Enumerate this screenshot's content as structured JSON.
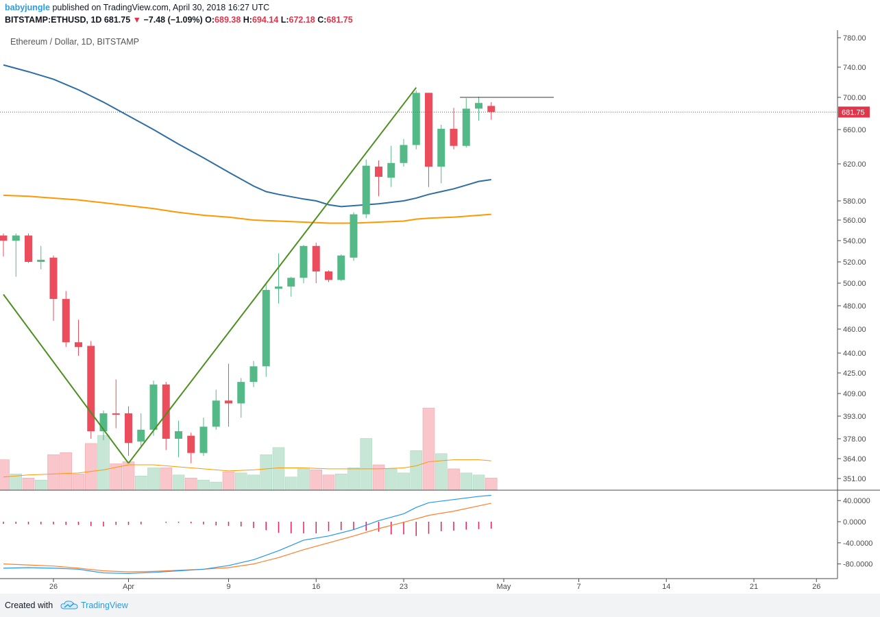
{
  "header": {
    "author": "babyjungle",
    "published_text": "published on TradingView.com, April 30, 2018 16:27 UTC",
    "symbol": "BITSTAMP:ETHUSD, 1D",
    "last": "681.75",
    "change": "−7.48 (−1.09%)",
    "o_label": "O:",
    "o_value": "689.38",
    "h_label": "H:",
    "h_value": "694.14",
    "l_label": "L:",
    "l_value": "672.18",
    "c_label": "C:",
    "c_value": "681.75"
  },
  "chart_legend": "Ethereum / Dollar, 1D, BITSTAMP",
  "footer": {
    "created_with": "Created with",
    "brand": "TradingView"
  },
  "colors": {
    "up": "#53b987",
    "down": "#eb4d5c",
    "up_volume": "#c8e6d6",
    "down_volume": "#f8c6cb",
    "ma_blue": "#2e6da4",
    "ma_orange": "#ff9800",
    "trend_line": "#4b8f1f",
    "macd": "#2196f3",
    "signal": "#ff7f2a",
    "histogram": "#e91e63",
    "price_line": "#e0364b"
  },
  "chart_data": {
    "type": "candlestick",
    "price_ticks": [
      351,
      364,
      378,
      393,
      409,
      425,
      440,
      460,
      480,
      500,
      520,
      540,
      560,
      580,
      620,
      660,
      700,
      740,
      780
    ],
    "price_tick_labels": [
      "351.00",
      "364.00",
      "378.00",
      "393.00",
      "409.00",
      "425.00",
      "440.00",
      "460.00",
      "480.00",
      "500.00",
      "520.00",
      "540.00",
      "560.00",
      "580.00",
      "620.00",
      "660.00",
      "700.00",
      "740.00",
      "780.00"
    ],
    "last_price_label": "681.75",
    "last_price": 681.75,
    "x_ticks": [
      {
        "label": "26",
        "day": 26
      },
      {
        "label": "Apr",
        "day": 32
      },
      {
        "label": "9",
        "day": 40
      },
      {
        "label": "16",
        "day": 47
      },
      {
        "label": "23",
        "day": 54
      },
      {
        "label": "May",
        "day": 62
      },
      {
        "label": "7",
        "day": 68
      },
      {
        "label": "14",
        "day": 75
      },
      {
        "label": "21",
        "day": 82
      },
      {
        "label": "26",
        "day": 87
      }
    ],
    "candles": [
      {
        "day": 22,
        "o": 545,
        "h": 547,
        "l": 525,
        "c": 540
      },
      {
        "day": 23,
        "o": 540,
        "h": 547,
        "l": 506,
        "c": 545
      },
      {
        "day": 24,
        "o": 545,
        "h": 547,
        "l": 519,
        "c": 520
      },
      {
        "day": 25,
        "o": 520,
        "h": 535,
        "l": 513,
        "c": 522
      },
      {
        "day": 26,
        "o": 524,
        "h": 526,
        "l": 467,
        "c": 486
      },
      {
        "day": 27,
        "o": 486,
        "h": 493,
        "l": 445,
        "c": 449
      },
      {
        "day": 28,
        "o": 449,
        "h": 468,
        "l": 438,
        "c": 445
      },
      {
        "day": 29,
        "o": 446,
        "h": 450,
        "l": 378,
        "c": 383
      },
      {
        "day": 30,
        "o": 383,
        "h": 397,
        "l": 377,
        "c": 395
      },
      {
        "day": 31,
        "o": 395,
        "h": 420,
        "l": 385,
        "c": 394
      },
      {
        "day": 32,
        "o": 395,
        "h": 400,
        "l": 366,
        "c": 375
      },
      {
        "day": 33,
        "o": 376,
        "h": 395,
        "l": 373,
        "c": 384
      },
      {
        "day": 34,
        "o": 384,
        "h": 419,
        "l": 380,
        "c": 416
      },
      {
        "day": 35,
        "o": 416,
        "h": 418,
        "l": 370,
        "c": 378
      },
      {
        "day": 36,
        "o": 378,
        "h": 390,
        "l": 365,
        "c": 383
      },
      {
        "day": 37,
        "o": 380,
        "h": 382,
        "l": 361,
        "c": 368
      },
      {
        "day": 38,
        "o": 368,
        "h": 392,
        "l": 366,
        "c": 386
      },
      {
        "day": 39,
        "o": 386,
        "h": 412,
        "l": 384,
        "c": 404
      },
      {
        "day": 40,
        "o": 404,
        "h": 432,
        "l": 386,
        "c": 402
      },
      {
        "day": 41,
        "o": 402,
        "h": 421,
        "l": 392,
        "c": 418
      },
      {
        "day": 42,
        "o": 418,
        "h": 434,
        "l": 414,
        "c": 430
      },
      {
        "day": 43,
        "o": 430,
        "h": 499,
        "l": 422,
        "c": 494
      },
      {
        "day": 44,
        "o": 495,
        "h": 528,
        "l": 482,
        "c": 497
      },
      {
        "day": 45,
        "o": 497,
        "h": 506,
        "l": 488,
        "c": 505
      },
      {
        "day": 46,
        "o": 505,
        "h": 536,
        "l": 500,
        "c": 535
      },
      {
        "day": 47,
        "o": 535,
        "h": 538,
        "l": 500,
        "c": 511
      },
      {
        "day": 48,
        "o": 511,
        "h": 512,
        "l": 501,
        "c": 503
      },
      {
        "day": 49,
        "o": 503,
        "h": 527,
        "l": 502,
        "c": 526
      },
      {
        "day": 50,
        "o": 524,
        "h": 568,
        "l": 521,
        "c": 566
      },
      {
        "day": 51,
        "o": 566,
        "h": 625,
        "l": 562,
        "c": 618
      },
      {
        "day": 52,
        "o": 617,
        "h": 624,
        "l": 585,
        "c": 606
      },
      {
        "day": 53,
        "o": 605,
        "h": 641,
        "l": 595,
        "c": 621
      },
      {
        "day": 54,
        "o": 621,
        "h": 649,
        "l": 617,
        "c": 642
      },
      {
        "day": 55,
        "o": 642,
        "h": 709,
        "l": 637,
        "c": 706
      },
      {
        "day": 56,
        "o": 706,
        "h": 706,
        "l": 595,
        "c": 617
      },
      {
        "day": 57,
        "o": 617,
        "h": 666,
        "l": 599,
        "c": 661
      },
      {
        "day": 58,
        "o": 661,
        "h": 687,
        "l": 637,
        "c": 641
      },
      {
        "day": 59,
        "o": 641,
        "h": 699,
        "l": 639,
        "c": 686
      },
      {
        "day": 60,
        "o": 686,
        "h": 701,
        "l": 671,
        "c": 693
      },
      {
        "day": 61,
        "o": 689.38,
        "h": 694.14,
        "l": 672.18,
        "c": 681.75
      }
    ],
    "volume": [
      3,
      1.6,
      1.2,
      1.0,
      3.5,
      3.7,
      1.6,
      4.6,
      5.4,
      2.6,
      2.8,
      1.4,
      2.2,
      2.2,
      1.5,
      1.2,
      1.0,
      0.8,
      1.8,
      1.7,
      1.5,
      3.5,
      4.2,
      1.3,
      2.1,
      2.0,
      1.5,
      1.6,
      2.2,
      5.1,
      2.5,
      2.1,
      1.7,
      3.9,
      8.1,
      3.6,
      2.1,
      1.7,
      1.5,
      1.2
    ],
    "ma_blue": [
      [
        22,
        743
      ],
      [
        24,
        734
      ],
      [
        26,
        724
      ],
      [
        28,
        710
      ],
      [
        30,
        694
      ],
      [
        32,
        677
      ],
      [
        34,
        660
      ],
      [
        36,
        643
      ],
      [
        38,
        627
      ],
      [
        40,
        611
      ],
      [
        42,
        596
      ],
      [
        43,
        590
      ],
      [
        44,
        587
      ],
      [
        46,
        582
      ],
      [
        47,
        580
      ],
      [
        48,
        576
      ],
      [
        49,
        574
      ],
      [
        50,
        575
      ],
      [
        51,
        576
      ],
      [
        52,
        577
      ],
      [
        54,
        580
      ],
      [
        55,
        583
      ],
      [
        56,
        587
      ],
      [
        57,
        590
      ],
      [
        58,
        593
      ],
      [
        59,
        597
      ],
      [
        60,
        601
      ],
      [
        61,
        603
      ]
    ],
    "ma_orange": [
      [
        22,
        586
      ],
      [
        24,
        585
      ],
      [
        26,
        583
      ],
      [
        28,
        581
      ],
      [
        30,
        578
      ],
      [
        32,
        575
      ],
      [
        34,
        572
      ],
      [
        36,
        568
      ],
      [
        38,
        565
      ],
      [
        40,
        563
      ],
      [
        42,
        560
      ],
      [
        44,
        559
      ],
      [
        46,
        558
      ],
      [
        48,
        557
      ],
      [
        50,
        557
      ],
      [
        52,
        558
      ],
      [
        54,
        559
      ],
      [
        55,
        561
      ],
      [
        56,
        562
      ],
      [
        58,
        563
      ],
      [
        60,
        565
      ],
      [
        61,
        566
      ]
    ],
    "volume_ma": [
      [
        22,
        1.3
      ],
      [
        24,
        1.5
      ],
      [
        26,
        1.6
      ],
      [
        28,
        1.7
      ],
      [
        30,
        2.0
      ],
      [
        32,
        2.5
      ],
      [
        34,
        2.5
      ],
      [
        36,
        2.3
      ],
      [
        38,
        2.1
      ],
      [
        40,
        1.9
      ],
      [
        42,
        2.0
      ],
      [
        44,
        2.2
      ],
      [
        46,
        2.2
      ],
      [
        48,
        2.1
      ],
      [
        50,
        2.1
      ],
      [
        52,
        2.1
      ],
      [
        54,
        2.2
      ],
      [
        55,
        2.4
      ],
      [
        56,
        2.8
      ],
      [
        58,
        3.0
      ],
      [
        60,
        3.0
      ],
      [
        61,
        2.9
      ]
    ],
    "trend_lines": [
      [
        [
          22,
          490
        ],
        [
          32,
          361
        ]
      ],
      [
        [
          32,
          361
        ],
        [
          55,
          713
        ]
      ]
    ],
    "resistance_line": [
      [
        58.5,
        700
      ],
      [
        66,
        700
      ]
    ],
    "macd": {
      "ticks": [
        40,
        0,
        -40,
        -80
      ],
      "tick_labels": [
        "40.0000",
        "0.0000",
        "-40.0000",
        "-80.0000"
      ],
      "macd_line": [
        [
          22,
          -88
        ],
        [
          24,
          -87
        ],
        [
          26,
          -88
        ],
        [
          28,
          -90
        ],
        [
          30,
          -97
        ],
        [
          32,
          -98
        ],
        [
          34,
          -96
        ],
        [
          36,
          -93
        ],
        [
          38,
          -90
        ],
        [
          40,
          -83
        ],
        [
          42,
          -72
        ],
        [
          44,
          -55
        ],
        [
          46,
          -35
        ],
        [
          48,
          -27
        ],
        [
          50,
          -15
        ],
        [
          52,
          2
        ],
        [
          54,
          15
        ],
        [
          55,
          27
        ],
        [
          56,
          36
        ],
        [
          58,
          42
        ],
        [
          60,
          48
        ],
        [
          61,
          50
        ]
      ],
      "signal_line": [
        [
          22,
          -80
        ],
        [
          24,
          -82
        ],
        [
          26,
          -84
        ],
        [
          28,
          -88
        ],
        [
          30,
          -93
        ],
        [
          32,
          -95
        ],
        [
          34,
          -94
        ],
        [
          36,
          -92
        ],
        [
          38,
          -90
        ],
        [
          40,
          -87
        ],
        [
          42,
          -80
        ],
        [
          44,
          -68
        ],
        [
          46,
          -53
        ],
        [
          48,
          -40
        ],
        [
          50,
          -27
        ],
        [
          52,
          -13
        ],
        [
          54,
          -1
        ],
        [
          56,
          12
        ],
        [
          58,
          20
        ],
        [
          60,
          30
        ],
        [
          61,
          35
        ]
      ],
      "histogram": [
        [
          22,
          -4
        ],
        [
          23,
          -4
        ],
        [
          24,
          -5
        ],
        [
          25,
          -5
        ],
        [
          26,
          -5
        ],
        [
          27,
          -6
        ],
        [
          28,
          -6
        ],
        [
          29,
          -8
        ],
        [
          30,
          -9
        ],
        [
          31,
          -6
        ],
        [
          32,
          -6
        ],
        [
          33,
          -5
        ],
        [
          35,
          -2
        ],
        [
          36,
          -2
        ],
        [
          37,
          -3
        ],
        [
          38,
          -5
        ],
        [
          39,
          -7
        ],
        [
          40,
          -8
        ],
        [
          41,
          -9
        ],
        [
          42,
          -12
        ],
        [
          43,
          -16
        ],
        [
          44,
          -21
        ],
        [
          45,
          -22
        ],
        [
          46,
          -22
        ],
        [
          47,
          -22
        ],
        [
          48,
          -18
        ],
        [
          49,
          -16
        ],
        [
          50,
          -15
        ],
        [
          51,
          -17
        ],
        [
          52,
          -19
        ],
        [
          53,
          -24
        ],
        [
          54,
          -24
        ],
        [
          55,
          -27
        ],
        [
          56,
          -23
        ],
        [
          57,
          -18
        ],
        [
          58,
          -17
        ],
        [
          59,
          -15
        ],
        [
          60,
          -14
        ],
        [
          61,
          -13
        ]
      ]
    }
  }
}
